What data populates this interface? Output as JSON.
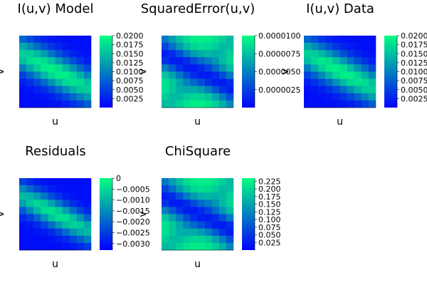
{
  "colormap": [
    "#0000ff",
    "#00ff80"
  ],
  "chart_data": [
    {
      "type": "heatmap",
      "title": "I(u,v) Model",
      "xlabel": "u",
      "ylabel": "v",
      "colorbar_ticks": [
        "0.0200",
        "0.0175",
        "0.0150",
        "0.0125",
        "0.0100",
        "0.0075",
        "0.0050",
        "0.0025"
      ],
      "clim": [
        0,
        0.02
      ],
      "pattern": "diagonal_band"
    },
    {
      "type": "heatmap",
      "title": "SquaredError(u,v)",
      "xlabel": "u",
      "ylabel": "v",
      "colorbar_ticks": [
        "0.0000100",
        "0.0000075",
        "0.0000050",
        "0.0000025"
      ],
      "clim": [
        0,
        1e-05
      ],
      "pattern": "dark_center_band"
    },
    {
      "type": "heatmap",
      "title": "I(u,v) Data",
      "xlabel": "u",
      "ylabel": "v",
      "colorbar_ticks": [
        "0.0200",
        "0.0175",
        "0.0150",
        "0.0125",
        "0.0100",
        "0.0075",
        "0.0050",
        "0.0025"
      ],
      "clim": [
        0,
        0.02
      ],
      "pattern": "diagonal_band"
    },
    {
      "type": "heatmap",
      "title": "Residuals",
      "xlabel": "u",
      "ylabel": "v",
      "colorbar_ticks": [
        "0",
        "−0.0005",
        "−0.0010",
        "−0.0015",
        "−0.0020",
        "−0.0025",
        "−0.0030"
      ],
      "clim": [
        -0.0033,
        0
      ],
      "pattern": "bright_center_band"
    },
    {
      "type": "heatmap",
      "title": "ChiSquare",
      "xlabel": "u",
      "ylabel": "v",
      "colorbar_ticks": [
        "0.225",
        "0.200",
        "0.175",
        "0.150",
        "0.125",
        "0.100",
        "0.075",
        "0.050",
        "0.025"
      ],
      "clim": [
        0,
        0.235
      ],
      "pattern": "dark_center_band"
    }
  ]
}
